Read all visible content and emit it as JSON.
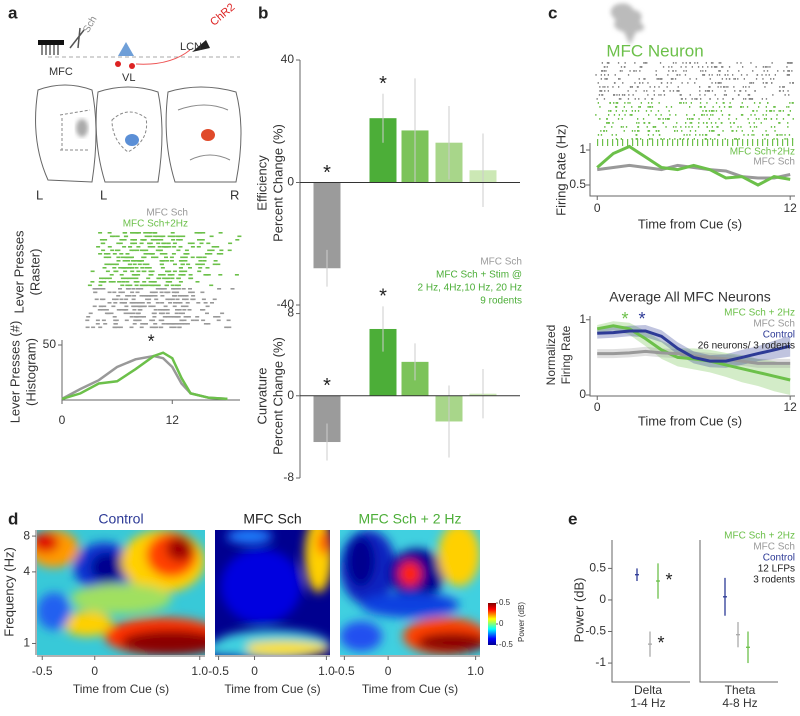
{
  "panel_letters": [
    "a",
    "b",
    "c",
    "d",
    "e"
  ],
  "schematic": {
    "labels": [
      "MFC",
      "VL",
      "LCN",
      "ChR2",
      "Sch"
    ],
    "section_labels": [
      "L",
      "L",
      "R"
    ]
  },
  "chart_data": [
    {
      "type": "line",
      "raster_label": [
        "Lever Presses",
        "(Raster)"
      ],
      "ylabel": [
        "Lever Presses (#)",
        "(Histogram)"
      ],
      "x": [
        0,
        2,
        4,
        6,
        8,
        10,
        11,
        12,
        13,
        14,
        16,
        18
      ],
      "series": [
        {
          "name": "MFC Sch",
          "color": "#999999",
          "values": [
            1,
            10,
            18,
            30,
            37,
            40,
            38,
            30,
            15,
            6,
            2,
            1
          ]
        },
        {
          "name": "MFC Sch+2Hz",
          "color": "#6cc04a",
          "values": [
            1,
            6,
            15,
            17,
            28,
            40,
            43,
            38,
            20,
            6,
            2,
            1
          ]
        }
      ],
      "annotation": "*",
      "xlim": [
        0,
        18.5
      ],
      "ylim": [
        0,
        50
      ],
      "xticks": [
        0,
        12
      ],
      "yticks": [
        50
      ]
    },
    {
      "type": "bar",
      "ylabel": [
        "Efficiency",
        "Percent Change (%)"
      ],
      "categories": [
        null,
        null,
        null,
        null,
        null
      ],
      "values": [
        -28,
        21,
        17,
        13,
        4
      ],
      "errors": [
        6,
        8,
        17,
        12,
        12
      ],
      "colors": [
        "#9b9b9b",
        "#4cae38",
        "#7cc35a",
        "#a8d68a",
        "#cce8b5"
      ],
      "significance": [
        "*",
        "*",
        null,
        null,
        null
      ],
      "legend": [
        "MFC Sch",
        "MFC Sch + Stim @",
        "2 Hz, 4Hz,10 Hz, 20 Hz",
        "9 rodents"
      ],
      "ylim": [
        -40,
        40
      ],
      "yticks": [
        -40,
        0,
        40
      ]
    },
    {
      "type": "bar",
      "ylabel": [
        "Curvature",
        "Percent Change (%)"
      ],
      "categories": [
        null,
        null,
        null,
        null,
        null
      ],
      "values": [
        -4.5,
        6.5,
        3.3,
        -2.5,
        0.2
      ],
      "errors": [
        1.8,
        2.2,
        1.8,
        3.5,
        2.4
      ],
      "colors": [
        "#9b9b9b",
        "#4cae38",
        "#7cc35a",
        "#a8d68a",
        "#cce8b5"
      ],
      "significance": [
        "*",
        "*",
        null,
        null,
        null
      ],
      "ylim": [
        -8,
        10
      ],
      "yticks": [
        -8,
        0,
        8
      ]
    },
    {
      "type": "line",
      "title": "MFC Neuron",
      "ylabel": [
        "Firing Rate (Hz)"
      ],
      "xlabel": "Time from Cue (s)",
      "x": [
        0,
        1,
        2,
        3,
        4,
        5,
        6,
        7,
        8,
        9,
        10,
        11,
        12
      ],
      "series": [
        {
          "name": "MFC Sch+2Hz",
          "color": "#6cc04a",
          "values": [
            0.75,
            0.95,
            1.05,
            0.9,
            0.75,
            0.72,
            0.78,
            0.72,
            0.6,
            0.62,
            0.5,
            0.62,
            0.58
          ]
        },
        {
          "name": "MFC Sch",
          "color": "#999999",
          "values": [
            0.72,
            0.75,
            0.78,
            0.75,
            0.72,
            0.78,
            0.75,
            0.72,
            0.7,
            0.62,
            0.6,
            0.6,
            0.65
          ]
        }
      ],
      "xlim": [
        -0.45,
        12.3
      ],
      "ylim": [
        0.4,
        1.1
      ],
      "xticks": [
        0,
        12
      ],
      "yticks": [
        0.5,
        1
      ]
    },
    {
      "type": "band",
      "title": "Average All MFC Neurons",
      "ylabel": [
        "Normalized",
        "Firing Rate"
      ],
      "xlabel": "Time from Cue (s)",
      "x": [
        0,
        1,
        2,
        3,
        4,
        5,
        6,
        7,
        8,
        9,
        10,
        11,
        12
      ],
      "series": [
        {
          "name": "MFC Sch + 2Hz",
          "color": "#6cc04a",
          "values": [
            0.88,
            0.92,
            0.88,
            0.75,
            0.6,
            0.5,
            0.48,
            0.45,
            0.4,
            0.35,
            0.3,
            0.25,
            0.2
          ],
          "errors": [
            0.05,
            0.06,
            0.08,
            0.1,
            0.12,
            0.12,
            0.14,
            0.15,
            0.16,
            0.18,
            0.18,
            0.2,
            0.2
          ]
        },
        {
          "name": "MFC Sch",
          "color": "#999999",
          "values": [
            0.55,
            0.55,
            0.56,
            0.58,
            0.56,
            0.55,
            0.52,
            0.5,
            0.48,
            0.45,
            0.42,
            0.42,
            0.42
          ],
          "errors": [
            0.06,
            0.06,
            0.06,
            0.06,
            0.06,
            0.06,
            0.06,
            0.06,
            0.06,
            0.06,
            0.06,
            0.06,
            0.06
          ]
        },
        {
          "name": "Control",
          "color": "#2d3a96",
          "values": [
            0.82,
            0.83,
            0.85,
            0.85,
            0.78,
            0.62,
            0.5,
            0.45,
            0.45,
            0.5,
            0.55,
            0.6,
            0.65
          ],
          "errors": [
            0.07,
            0.07,
            0.07,
            0.08,
            0.08,
            0.08,
            0.08,
            0.08,
            0.09,
            0.1,
            0.1,
            0.12,
            0.14
          ]
        }
      ],
      "significance": [
        "*",
        null,
        "*"
      ],
      "note": "26 neurons/ 3 rodents",
      "xlim": [
        -0.45,
        12.3
      ],
      "ylim": [
        0,
        1.05
      ],
      "xticks": [
        0,
        12
      ],
      "yticks": [
        0,
        1
      ]
    },
    {
      "type": "heatmap",
      "titles": [
        "Control",
        "MFC Sch",
        "MFC Sch + 2 Hz"
      ],
      "title_colors": [
        "#2d3a96",
        "#222222",
        "#4cae38"
      ],
      "ylabel": "Frequency (Hz)",
      "xlabel": "Time from Cue (s)",
      "xlim": [
        -0.55,
        1.05
      ],
      "xticks": [
        -0.5,
        0,
        {
          "value": 1,
          "label": "1.0"
        }
      ],
      "ylim": [
        0.8,
        9
      ],
      "yticks": [
        1,
        4,
        8
      ],
      "ylog": true,
      "colorbar": {
        "label": "Power (dB)",
        "lim": [
          -0.5,
          0.5
        ],
        "ticks": [
          0.5,
          0,
          -0.5
        ]
      }
    },
    {
      "type": "errorbar",
      "ylabel": "Power (dB)",
      "xlabel": [
        "Delta",
        "1-4 Hz"
      ],
      "values": [
        0.4,
        -0.7,
        0.3
      ],
      "errors": [
        0.1,
        0.2,
        0.28
      ],
      "colors": [
        "#2d3a96",
        "#aaaaaa",
        "#6cc04a"
      ],
      "significance": [
        null,
        "*",
        "*"
      ],
      "ylim": [
        -1.3,
        0.95
      ],
      "yticks": [
        -1,
        -0.5,
        0,
        0.5
      ]
    },
    {
      "type": "errorbar",
      "xlabel": [
        "Theta",
        "4-8 Hz"
      ],
      "values": [
        0.05,
        -0.55,
        -0.75
      ],
      "errors": [
        0.3,
        0.2,
        0.25
      ],
      "colors": [
        "#2d3a96",
        "#aaaaaa",
        "#6cc04a"
      ],
      "legend": [
        "MFC Sch + 2Hz",
        "MFC Sch",
        "Control"
      ],
      "legend_colors": [
        "#6cc04a",
        "#999999",
        "#2d3a96"
      ],
      "notes": [
        "12 LFPs",
        "3 rodents"
      ],
      "ylim": [
        -1.3,
        0.95
      ]
    }
  ]
}
